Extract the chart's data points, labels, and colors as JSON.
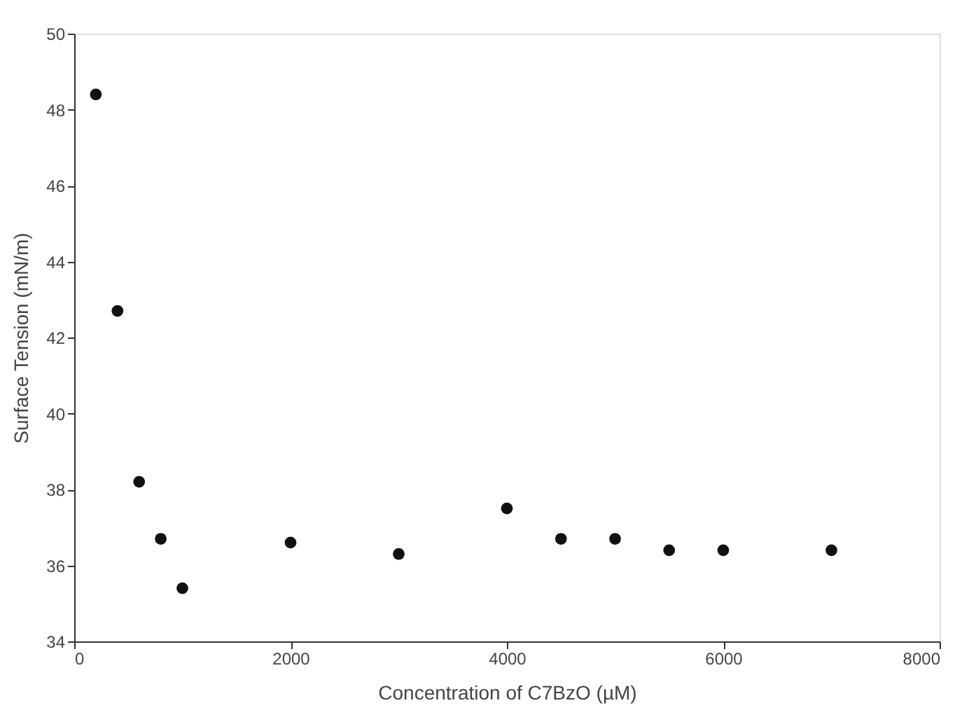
{
  "chart_data": {
    "type": "scatter",
    "xlabel": "Concentration of C7BzO (µM)",
    "ylabel": "Surface Tension (mN/m)",
    "x": [
      200,
      400,
      600,
      800,
      1000,
      2000,
      3000,
      4000,
      4500,
      5000,
      5500,
      6000,
      7000
    ],
    "series": [
      {
        "color": "#111111",
        "values": [
          48.4,
          42.7,
          38.2,
          36.7,
          35.4,
          36.6,
          36.3,
          37.5,
          36.7,
          36.7,
          36.4,
          36.4,
          36.4
        ]
      }
    ],
    "xlim": [
      0,
      8000
    ],
    "xticks": [
      0,
      2000,
      4000,
      6000,
      8000
    ],
    "ylim": [
      34,
      50
    ],
    "yticks": [
      34,
      36,
      38,
      40,
      42,
      44,
      46,
      48,
      50
    ],
    "grid": false,
    "marker": "circle"
  }
}
